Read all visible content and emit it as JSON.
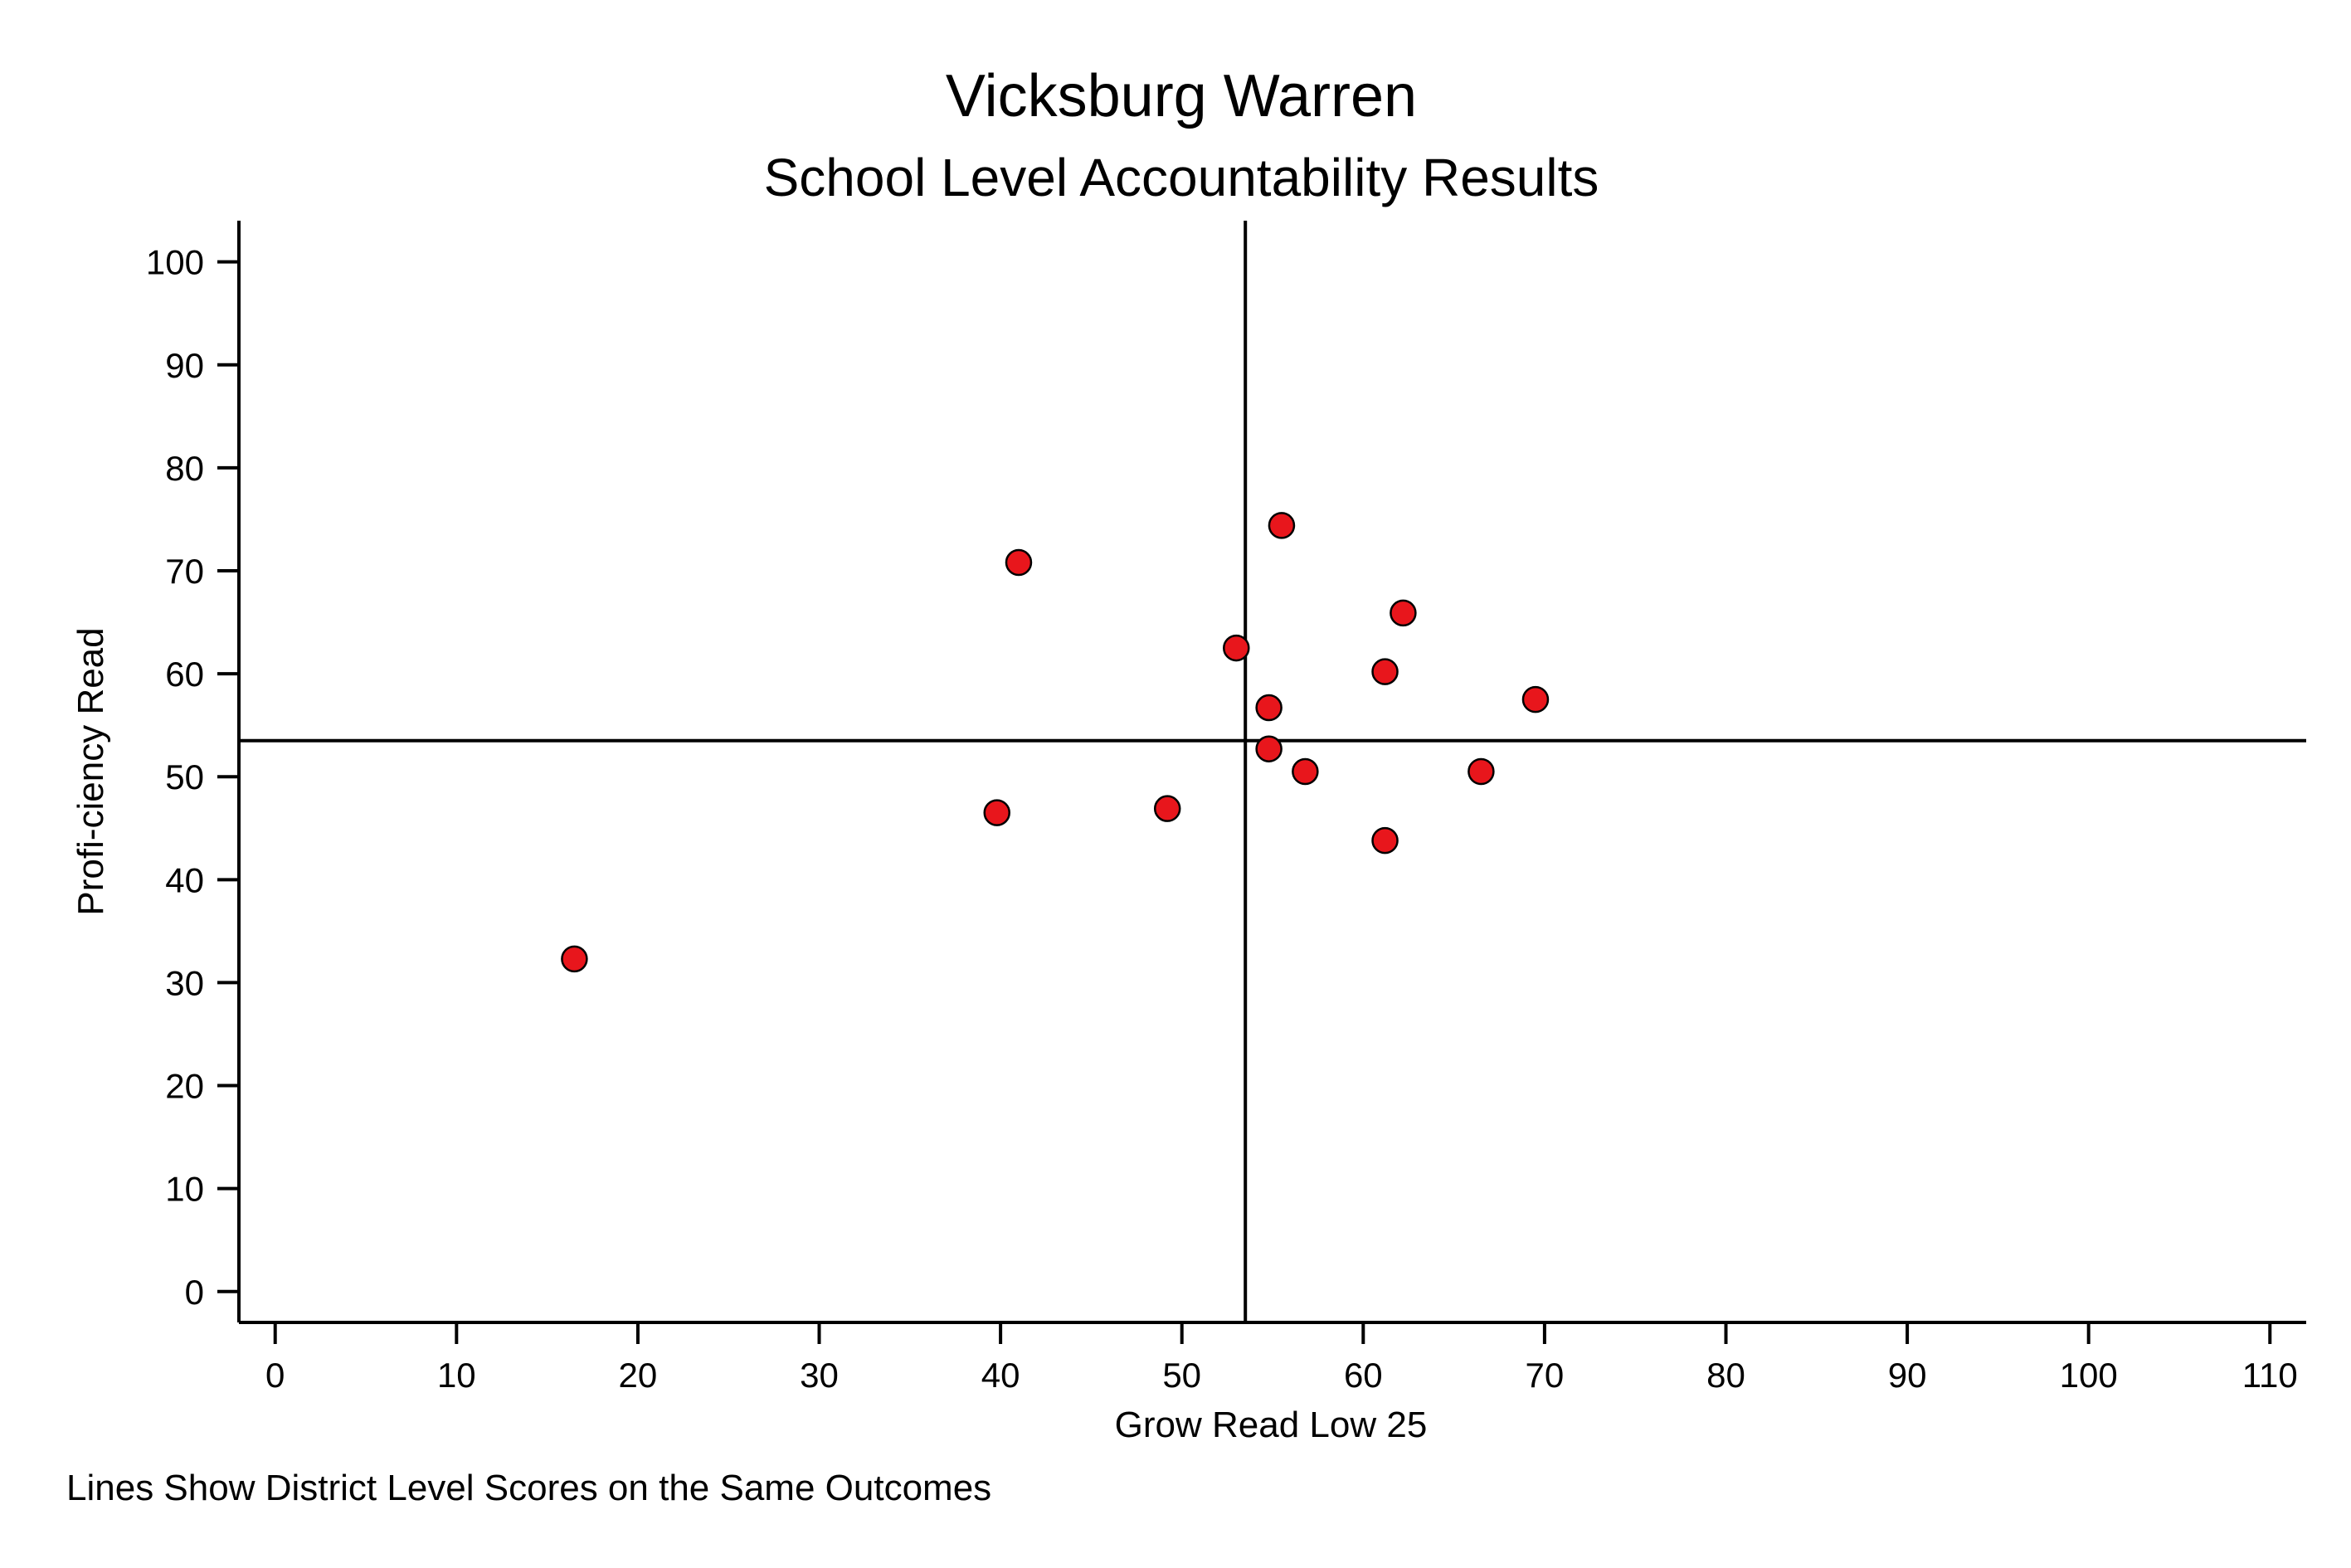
{
  "chart_data": {
    "type": "scatter",
    "title": "Vicksburg Warren",
    "subtitle": "School Level Accountability Results",
    "xlabel": "Grow Read Low 25",
    "ylabel": "Profi-ciency Read",
    "note": "Lines Show District Level Scores on the Same Outcomes",
    "xlim": [
      -2,
      112
    ],
    "ylim": [
      -3,
      104
    ],
    "xticks": [
      0,
      10,
      20,
      30,
      40,
      50,
      60,
      70,
      80,
      90,
      100,
      110
    ],
    "yticks": [
      0,
      10,
      20,
      30,
      40,
      50,
      60,
      70,
      80,
      90,
      100
    ],
    "grid": false,
    "reference_lines": {
      "x": 53.5,
      "y": 53.5
    },
    "marker_color": "#e8161c",
    "marker_edge_color": "#000000",
    "points": [
      {
        "x": 16.5,
        "y": 32.3
      },
      {
        "x": 39.8,
        "y": 46.5
      },
      {
        "x": 41.0,
        "y": 70.8
      },
      {
        "x": 49.2,
        "y": 46.9
      },
      {
        "x": 53.0,
        "y": 62.5
      },
      {
        "x": 54.8,
        "y": 56.7
      },
      {
        "x": 54.8,
        "y": 52.7
      },
      {
        "x": 55.5,
        "y": 74.4
      },
      {
        "x": 56.8,
        "y": 50.5
      },
      {
        "x": 61.2,
        "y": 60.2
      },
      {
        "x": 61.2,
        "y": 43.8
      },
      {
        "x": 62.2,
        "y": 65.9
      },
      {
        "x": 66.5,
        "y": 50.5
      },
      {
        "x": 69.5,
        "y": 57.5
      }
    ]
  }
}
